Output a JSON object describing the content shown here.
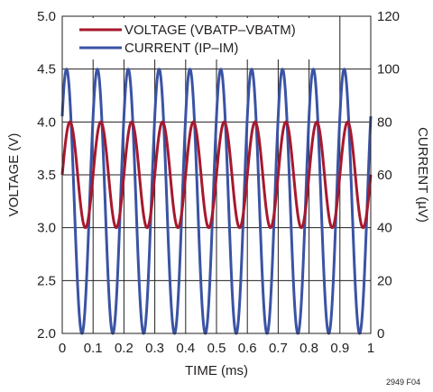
{
  "chart_data": {
    "type": "line",
    "figure_id": "2949 F04",
    "xlabel": "TIME (ms)",
    "ylabel": "VOLTAGE (V)",
    "y2label": "CURRENT (µV)",
    "xlim": [
      0,
      1
    ],
    "ylim": [
      2.0,
      5.0
    ],
    "y2lim": [
      0,
      120
    ],
    "x_ticks": [
      "0",
      "0.1",
      "0.2",
      "0.3",
      "0.4",
      "0.5",
      "0.6",
      "0.7",
      "0.8",
      "0.9",
      "1"
    ],
    "y_ticks": [
      "2.0",
      "2.5",
      "3.0",
      "3.5",
      "4.0",
      "4.5",
      "5.0"
    ],
    "y2_ticks": [
      "0",
      "20",
      "40",
      "60",
      "80",
      "100",
      "120"
    ],
    "grid": true,
    "legend_position": "top-left",
    "series": [
      {
        "name": "VOLTAGE (VBATP–VBATM)",
        "axis": "left",
        "color": "#a6192e",
        "waveform": "sine",
        "frequency_khz": 10,
        "min": 3.0,
        "max": 4.0,
        "value_at_x0": 3.5,
        "rising_at_x0": true
      },
      {
        "name": "CURRENT (IP–IM)",
        "axis": "right",
        "color": "#3a53a4",
        "waveform": "sine",
        "frequency_khz": 10,
        "min": 0,
        "max": 100,
        "value_at_x0": 50,
        "rising_at_x0": true,
        "phase_lead_deg": 40
      }
    ]
  }
}
